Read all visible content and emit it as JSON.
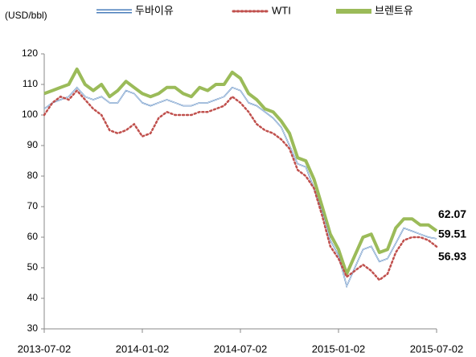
{
  "chart_data": {
    "type": "line",
    "y_axis_label": "(USD/bbl)",
    "categories": [
      "2013-07-02",
      null,
      null,
      null,
      null,
      null,
      null,
      null,
      null,
      null,
      null,
      null,
      "2014-01-02",
      null,
      null,
      null,
      null,
      null,
      null,
      null,
      null,
      null,
      null,
      null,
      "2014-07-02",
      null,
      null,
      null,
      null,
      null,
      null,
      null,
      null,
      null,
      null,
      null,
      "2015-01-02",
      null,
      null,
      null,
      null,
      null,
      null,
      null,
      null,
      null,
      null,
      null,
      "2015-07-02"
    ],
    "series": [
      {
        "name": "두바이유",
        "color": "#4a7ebb",
        "style": "double",
        "values": [
          102,
          104,
          105,
          106,
          109,
          106,
          105,
          106,
          104,
          104,
          108,
          107,
          104,
          103,
          104,
          105,
          104,
          103,
          103,
          104,
          104,
          105,
          106,
          109,
          108,
          104,
          103,
          101,
          99,
          96,
          90,
          84,
          83,
          76,
          68,
          59,
          54,
          44,
          50,
          56,
          57,
          52,
          53,
          58,
          63,
          62,
          61,
          60,
          59.51
        ]
      },
      {
        "name": "WTI",
        "color": "#c0504d",
        "style": "dotted",
        "values": [
          100,
          104,
          106,
          105,
          108,
          105,
          102,
          100,
          95,
          94,
          95,
          97,
          93,
          94,
          99,
          101,
          100,
          100,
          100,
          101,
          101,
          102,
          103,
          106,
          104,
          101,
          97,
          95,
          94,
          92,
          89,
          82,
          80,
          76,
          67,
          57,
          53,
          47,
          49,
          51,
          49,
          46,
          48,
          55,
          59,
          60,
          60,
          59,
          56.93
        ]
      },
      {
        "name": "브렌트유",
        "color": "#9bbb59",
        "style": "thick",
        "values": [
          107,
          108,
          109,
          110,
          115,
          110,
          108,
          110,
          106,
          108,
          111,
          109,
          107,
          106,
          107,
          109,
          109,
          107,
          106,
          109,
          108,
          110,
          110,
          114,
          112,
          107,
          105,
          102,
          101,
          98,
          94,
          86,
          85,
          79,
          70,
          61,
          56,
          48,
          54,
          60,
          61,
          55,
          56,
          63,
          66,
          66,
          64,
          64,
          62.07
        ]
      }
    ],
    "ylim": [
      30,
      120
    ],
    "yticks": [
      30,
      40,
      50,
      60,
      70,
      80,
      90,
      100,
      110,
      120
    ],
    "legend": "top",
    "grid": false
  }
}
